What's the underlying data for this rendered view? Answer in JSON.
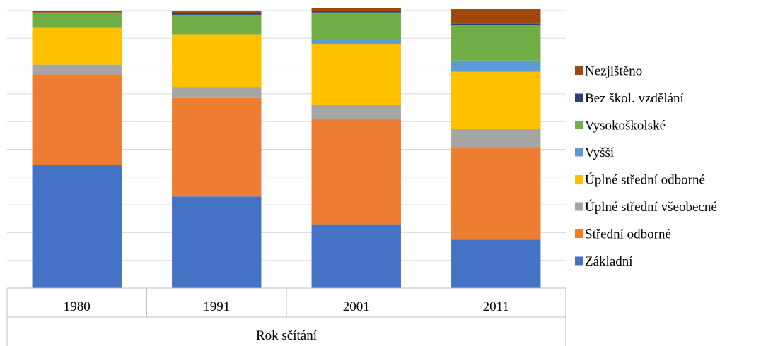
{
  "chart_data": {
    "type": "bar",
    "stacked": true,
    "percent_stacked": true,
    "title": "",
    "xlabel": "Rok sčítání",
    "ylabel": "",
    "ylim": [
      0,
      100
    ],
    "grid": true,
    "legend_position": "right",
    "categories": [
      "1980",
      "1991",
      "2001",
      "2011"
    ],
    "series": [
      {
        "name": "Základní",
        "color": "#4472C4",
        "values": [
          44.5,
          33.0,
          23.0,
          17.5
        ]
      },
      {
        "name": "Střední odborné",
        "color": "#ED7D31",
        "values": [
          32.5,
          35.5,
          38.0,
          33.0
        ]
      },
      {
        "name": "Úplné střední všeobecné",
        "color": "#A5A5A5",
        "values": [
          3.5,
          4.0,
          5.0,
          7.0
        ]
      },
      {
        "name": "Úplné střední odborné",
        "color": "#FFC000",
        "values": [
          13.5,
          19.0,
          22.0,
          20.5
        ]
      },
      {
        "name": "Vyšší",
        "color": "#5B9BD5",
        "values": [
          0,
          0,
          1.5,
          4.0
        ]
      },
      {
        "name": "Vysokoškolské",
        "color": "#70AD47",
        "values": [
          5.3,
          7.0,
          9.8,
          12.7
        ]
      },
      {
        "name": "Bez škol. vzdělání",
        "color": "#264478",
        "values": [
          0,
          0.5,
          0.5,
          0.5
        ]
      },
      {
        "name": "Nezjištěno",
        "color": "#9E480E",
        "values": [
          0.7,
          1.0,
          1.2,
          5.3
        ]
      }
    ]
  }
}
